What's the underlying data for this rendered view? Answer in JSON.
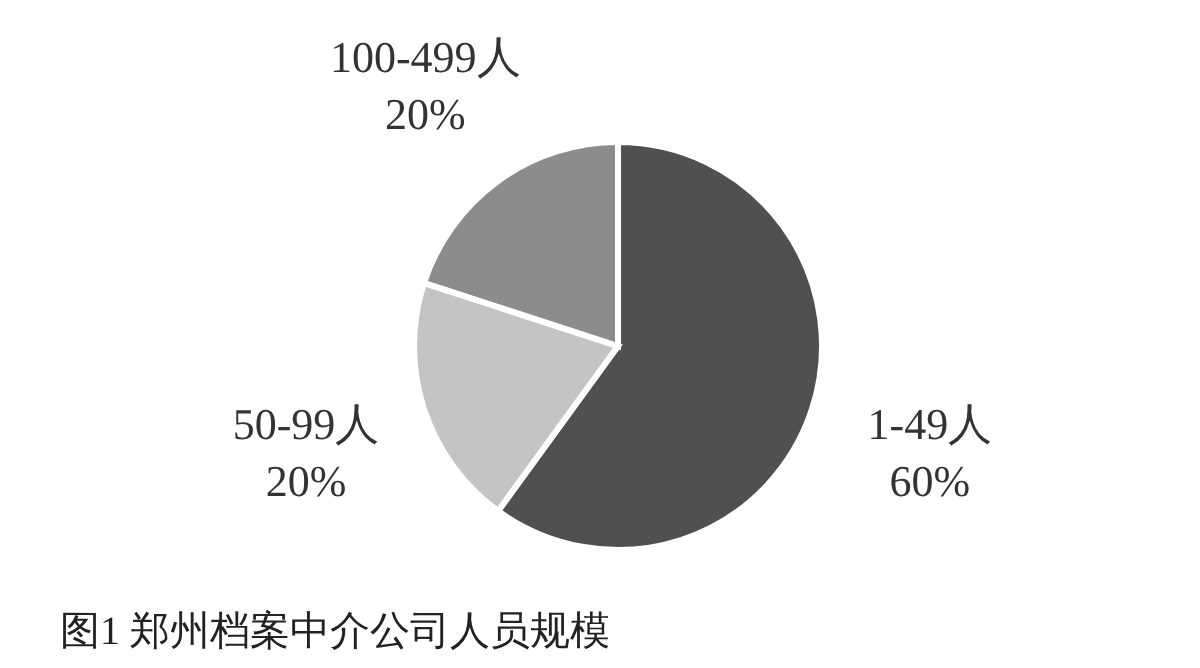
{
  "chart_data": {
    "type": "pie",
    "title": "图1 郑州档案中介公司人员规模",
    "categories": [
      "1-49人",
      "50-99人",
      "100-499人"
    ],
    "values": [
      60,
      20,
      20
    ],
    "value_labels": [
      "60%",
      "20%",
      "20%"
    ],
    "colors": [
      "#505050",
      "#c4c4c4",
      "#8c8c8c"
    ],
    "legend": false
  }
}
